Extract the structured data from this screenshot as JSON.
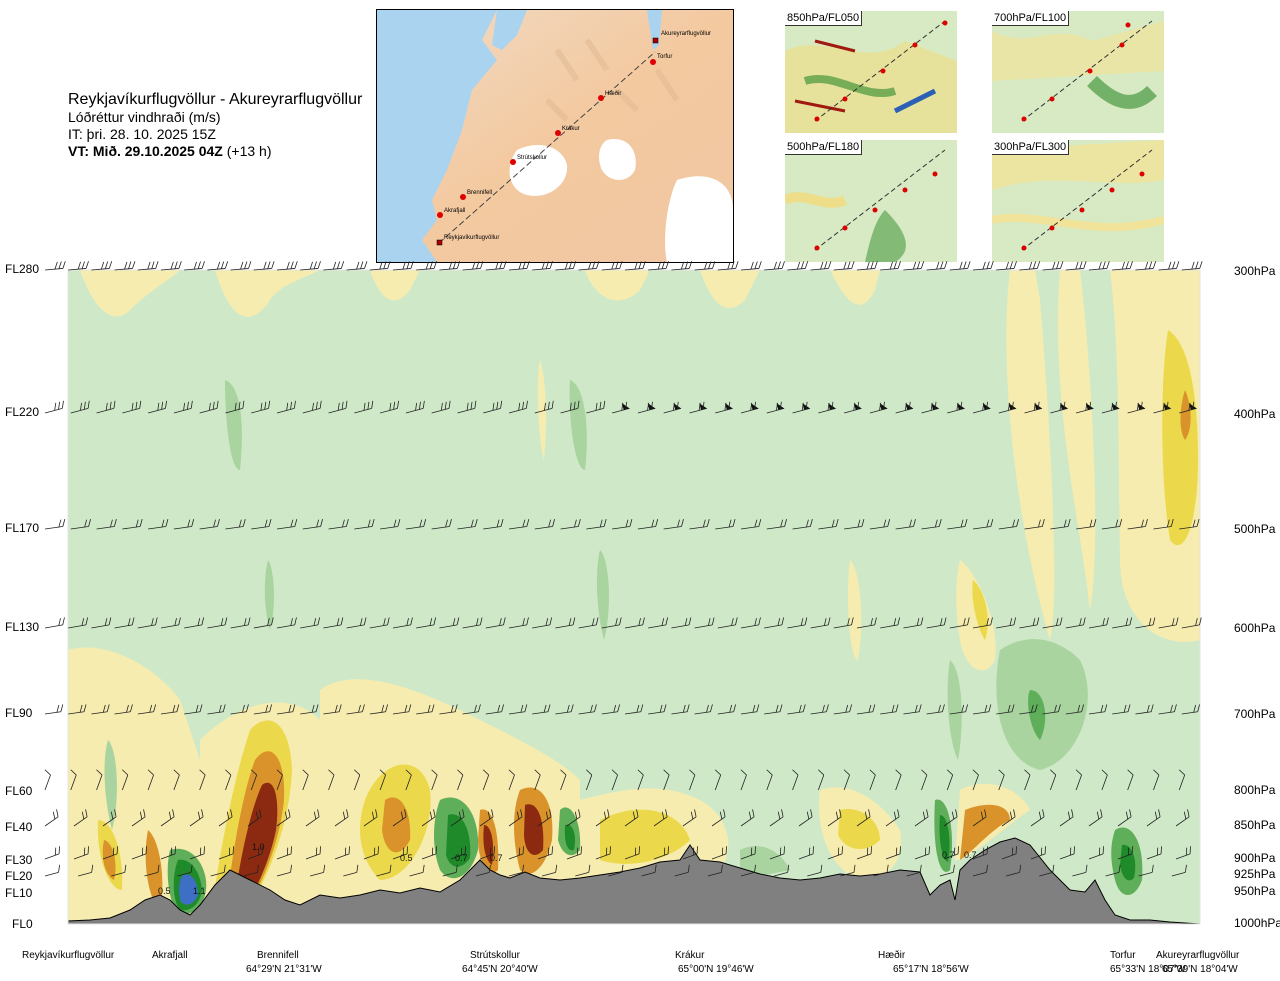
{
  "header": {
    "title": "Reykjavíkurflugvöllur - Akureyrarflugvöllur",
    "subtitle": "Lóðréttur vindhraði (m/s)",
    "issue_time": "IT: þri. 28. 10. 2025 15Z",
    "valid_time_bold": "VT: Mið. 29.10.2025 04Z",
    "valid_time_offset": "(+13 h)"
  },
  "route_map": {
    "waypoints": [
      "Akureyrarflugvöllur",
      "Torfur",
      "Hæðir",
      "Krákur",
      "Strútskollur",
      "Brennifell",
      "Akrafjall",
      "Reykjavíkurflugvöllur"
    ]
  },
  "mini_maps": [
    {
      "label": "850hPa/FL050"
    },
    {
      "label": "700hPa/FL100"
    },
    {
      "label": "500hPa/FL180"
    },
    {
      "label": "300hPa/FL300"
    }
  ],
  "chart_data": {
    "type": "heatmap",
    "title": "Lóðréttur vindhraði (m/s)",
    "y_levels_fl": [
      "FL280",
      "FL220",
      "FL170",
      "FL130",
      "FL90",
      "FL60",
      "FL40",
      "FL30",
      "FL20",
      "FL10",
      "FL0"
    ],
    "y_levels_hpa": [
      "300hPa",
      "400hPa",
      "500hPa",
      "600hPa",
      "700hPa",
      "800hPa",
      "850hPa",
      "900hPa",
      "925hPa",
      "950hPa",
      "1000hPa"
    ],
    "stations": [
      {
        "name": "Reykjavíkurflugvöllur",
        "coord": ""
      },
      {
        "name": "Akrafjall",
        "coord": ""
      },
      {
        "name": "Brennifell",
        "coord": "64°29'N 21°31'W"
      },
      {
        "name": "Strútskollur",
        "coord": "64°45'N 20°40'W"
      },
      {
        "name": "Krákur",
        "coord": "65°00'N 19°46'W"
      },
      {
        "name": "Hæðir",
        "coord": "65°17'N 18°56'W"
      },
      {
        "name": "Torfur",
        "coord": "65°33'N 18°07'W"
      },
      {
        "name": "Akureyrarflugvöllur",
        "coord": "65°39'N 18°04'W"
      }
    ],
    "annotations": [
      "0.5",
      "1.1",
      "1.0",
      "0.5",
      "0.7",
      "0.7",
      "0.7",
      "0.7"
    ],
    "colors": {
      "background_green": "#cfe9c8",
      "light_green": "#a9d39f",
      "mid_green": "#5fae5a",
      "dark_green": "#1f8a2a",
      "light_yellow": "#f7ecb0",
      "yellow": "#ecd94b",
      "orange": "#d9932a",
      "brown": "#8b2a10",
      "red": "#b51d10",
      "blue": "#3d6fc4",
      "terrain": "#808080"
    },
    "legend": "none",
    "grid": false
  }
}
